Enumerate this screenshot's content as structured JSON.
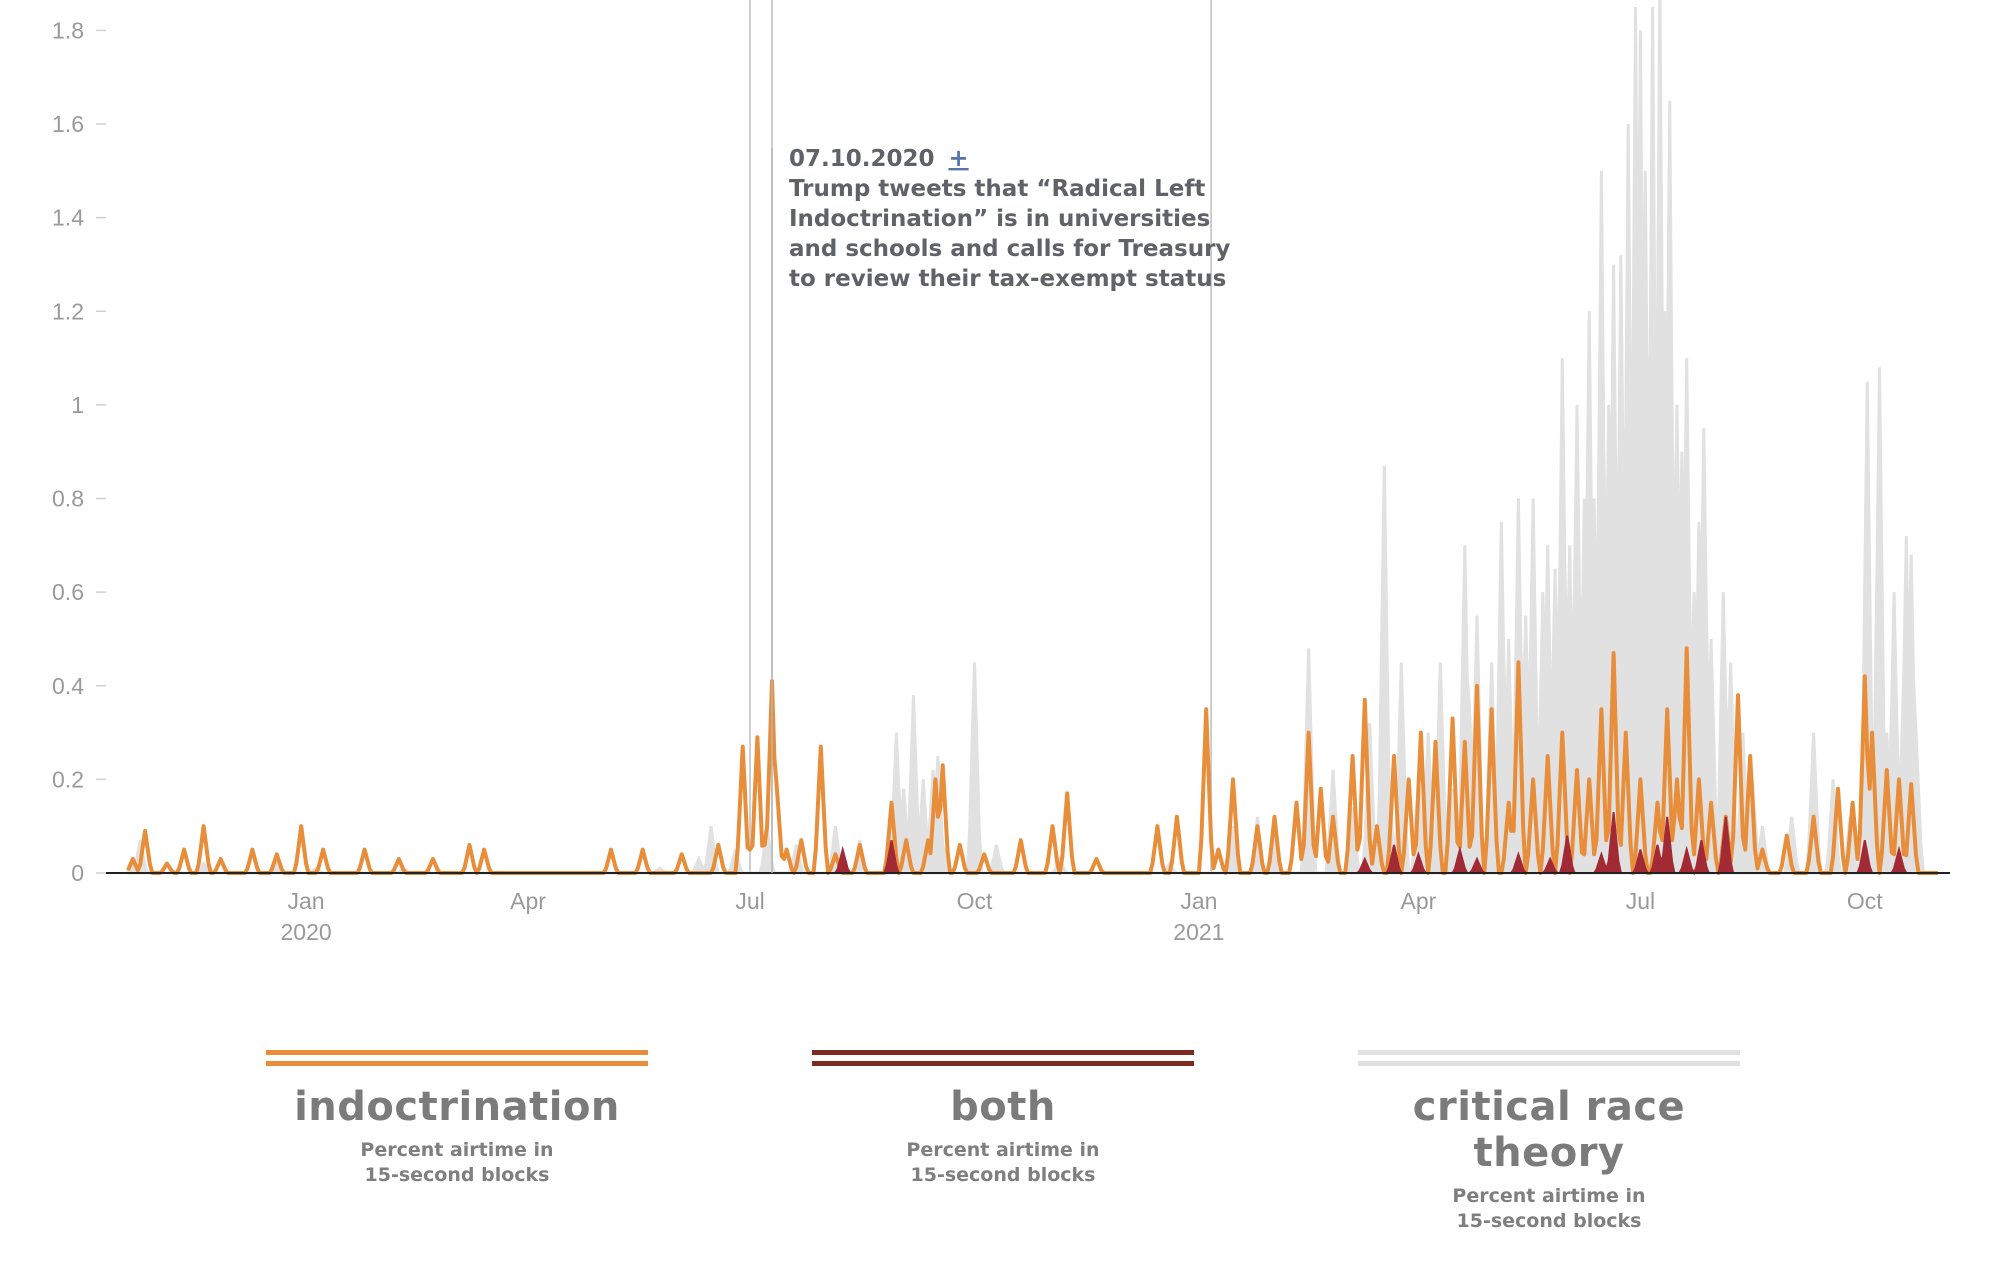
{
  "chart_data": {
    "type": "area",
    "title": "",
    "xlabel": "",
    "ylabel": "",
    "ylim": [
      0,
      1.85
    ],
    "xlim": [
      "2019-10-20",
      "2021-10-31"
    ],
    "y_ticks": [
      {
        "value": 0,
        "label": "0"
      },
      {
        "value": 0.2,
        "label": "0.2"
      },
      {
        "value": 0.4,
        "label": "0.4"
      },
      {
        "value": 0.6,
        "label": "0.6"
      },
      {
        "value": 0.8,
        "label": "0.8"
      },
      {
        "value": 1,
        "label": "1"
      },
      {
        "value": 1.2,
        "label": "1.2"
      },
      {
        "value": 1.4,
        "label": "1.4"
      },
      {
        "value": 1.6,
        "label": "1.6"
      },
      {
        "value": 1.8,
        "label": "1.8"
      }
    ],
    "x_ticks": [
      {
        "date": "2020-01-01",
        "label": "Jan",
        "year": "2020"
      },
      {
        "date": "2020-04-01",
        "label": "Apr",
        "year": ""
      },
      {
        "date": "2020-07-01",
        "label": "Jul",
        "year": ""
      },
      {
        "date": "2020-10-01",
        "label": "Oct",
        "year": ""
      },
      {
        "date": "2021-01-01",
        "label": "Jan",
        "year": "2021"
      },
      {
        "date": "2021-04-01",
        "label": "Apr",
        "year": ""
      },
      {
        "date": "2021-07-01",
        "label": "Jul",
        "year": ""
      },
      {
        "date": "2021-10-01",
        "label": "Oct",
        "year": ""
      }
    ],
    "annotation_lines": [
      "2020-07-01",
      "2020-07-10",
      "2021-01-06"
    ],
    "annotation": {
      "date": "2020-07-10",
      "heading": "07.10.2020",
      "toggle": "+",
      "lines": [
        "Trump tweets that “Radical Left",
        "Indoctrination” is in universities",
        "and schools and calls for Treasury",
        "to review their tax-exempt status"
      ]
    },
    "series": [
      {
        "name": "critical race theory",
        "color": "#e1e1e1",
        "points": [
          [
            "2019-10-22",
            0.02
          ],
          [
            "2019-10-25",
            0.07
          ],
          [
            "2019-11-20",
            0.02
          ],
          [
            "2019-12-20",
            0.02
          ],
          [
            "2020-01-05",
            0.01
          ],
          [
            "2020-02-10",
            0.01
          ],
          [
            "2020-05-25",
            0.01
          ],
          [
            "2020-06-10",
            0.03
          ],
          [
            "2020-06-15",
            0.1
          ],
          [
            "2020-06-25",
            0.05
          ],
          [
            "2020-07-08",
            0.1
          ],
          [
            "2020-07-20",
            0.06
          ],
          [
            "2020-08-05",
            0.1
          ],
          [
            "2020-08-15",
            0.07
          ],
          [
            "2020-08-30",
            0.3
          ],
          [
            "2020-09-02",
            0.18
          ],
          [
            "2020-09-06",
            0.38
          ],
          [
            "2020-09-10",
            0.2
          ],
          [
            "2020-09-14",
            0.22
          ],
          [
            "2020-09-16",
            0.25
          ],
          [
            "2020-09-18",
            0.06
          ],
          [
            "2020-10-01",
            0.45
          ],
          [
            "2020-10-10",
            0.06
          ],
          [
            "2020-11-05",
            0.03
          ],
          [
            "2020-12-20",
            0.02
          ],
          [
            "2021-01-15",
            0.1
          ],
          [
            "2021-01-25",
            0.12
          ],
          [
            "2021-02-01",
            0.08
          ],
          [
            "2021-02-15",
            0.48
          ],
          [
            "2021-02-25",
            0.22
          ],
          [
            "2021-03-05",
            0.14
          ],
          [
            "2021-03-12",
            0.32
          ],
          [
            "2021-03-18",
            0.87
          ],
          [
            "2021-03-20",
            0.18
          ],
          [
            "2021-03-25",
            0.45
          ],
          [
            "2021-04-01",
            0.2
          ],
          [
            "2021-04-05",
            0.3
          ],
          [
            "2021-04-10",
            0.45
          ],
          [
            "2021-04-15",
            0.18
          ],
          [
            "2021-04-20",
            0.7
          ],
          [
            "2021-04-22",
            0.35
          ],
          [
            "2021-04-25",
            0.55
          ],
          [
            "2021-05-01",
            0.45
          ],
          [
            "2021-05-05",
            0.75
          ],
          [
            "2021-05-08",
            0.5
          ],
          [
            "2021-05-12",
            0.8
          ],
          [
            "2021-05-15",
            0.55
          ],
          [
            "2021-05-18",
            0.8
          ],
          [
            "2021-05-22",
            0.6
          ],
          [
            "2021-05-24",
            0.7
          ],
          [
            "2021-05-27",
            0.65
          ],
          [
            "2021-05-30",
            1.1
          ],
          [
            "2021-06-02",
            0.7
          ],
          [
            "2021-06-05",
            1.0
          ],
          [
            "2021-06-08",
            0.8
          ],
          [
            "2021-06-10",
            1.2
          ],
          [
            "2021-06-12",
            0.8
          ],
          [
            "2021-06-15",
            1.5
          ],
          [
            "2021-06-18",
            1.0
          ],
          [
            "2021-06-20",
            1.3
          ],
          [
            "2021-06-23",
            1.32
          ],
          [
            "2021-06-26",
            1.6
          ],
          [
            "2021-06-29",
            1.85
          ],
          [
            "2021-07-01",
            1.8
          ],
          [
            "2021-07-03",
            1.5
          ],
          [
            "2021-07-06",
            1.85
          ],
          [
            "2021-07-09",
            1.9
          ],
          [
            "2021-07-11",
            1.2
          ],
          [
            "2021-07-13",
            1.65
          ],
          [
            "2021-07-16",
            1.0
          ],
          [
            "2021-07-18",
            0.9
          ],
          [
            "2021-07-20",
            1.1
          ],
          [
            "2021-07-23",
            0.6
          ],
          [
            "2021-07-25",
            0.75
          ],
          [
            "2021-07-27",
            0.95
          ],
          [
            "2021-07-30",
            0.5
          ],
          [
            "2021-08-04",
            0.6
          ],
          [
            "2021-08-07",
            0.45
          ],
          [
            "2021-08-12",
            0.3
          ],
          [
            "2021-08-16",
            0.2
          ],
          [
            "2021-08-20",
            0.1
          ],
          [
            "2021-09-01",
            0.12
          ],
          [
            "2021-09-10",
            0.3
          ],
          [
            "2021-09-18",
            0.2
          ],
          [
            "2021-09-25",
            0.12
          ],
          [
            "2021-10-01",
            0.18
          ],
          [
            "2021-10-02",
            1.05
          ],
          [
            "2021-10-05",
            0.3
          ],
          [
            "2021-10-07",
            1.08
          ],
          [
            "2021-10-10",
            0.3
          ],
          [
            "2021-10-13",
            0.6
          ],
          [
            "2021-10-16",
            0.25
          ],
          [
            "2021-10-18",
            0.72
          ],
          [
            "2021-10-20",
            0.68
          ],
          [
            "2021-10-22",
            0.3
          ]
        ]
      },
      {
        "name": "indoctrination",
        "color": "#e88e3a",
        "points": [
          [
            "2019-10-22",
            0.03
          ],
          [
            "2019-10-27",
            0.09
          ],
          [
            "2019-11-05",
            0.02
          ],
          [
            "2019-11-12",
            0.05
          ],
          [
            "2019-11-20",
            0.1
          ],
          [
            "2019-11-27",
            0.03
          ],
          [
            "2019-12-10",
            0.05
          ],
          [
            "2019-12-20",
            0.04
          ],
          [
            "2019-12-30",
            0.1
          ],
          [
            "2020-01-08",
            0.05
          ],
          [
            "2020-01-25",
            0.05
          ],
          [
            "2020-02-08",
            0.03
          ],
          [
            "2020-02-22",
            0.03
          ],
          [
            "2020-03-08",
            0.06
          ],
          [
            "2020-03-14",
            0.05
          ],
          [
            "2020-05-05",
            0.05
          ],
          [
            "2020-05-18",
            0.05
          ],
          [
            "2020-06-03",
            0.04
          ],
          [
            "2020-06-18",
            0.06
          ],
          [
            "2020-06-28",
            0.27
          ],
          [
            "2020-07-01",
            0.05
          ],
          [
            "2020-07-04",
            0.29
          ],
          [
            "2020-07-08",
            0.1
          ],
          [
            "2020-07-10",
            0.41
          ],
          [
            "2020-07-12",
            0.18
          ],
          [
            "2020-07-16",
            0.05
          ],
          [
            "2020-07-22",
            0.07
          ],
          [
            "2020-07-30",
            0.27
          ],
          [
            "2020-08-05",
            0.04
          ],
          [
            "2020-08-15",
            0.06
          ],
          [
            "2020-08-28",
            0.15
          ],
          [
            "2020-09-03",
            0.07
          ],
          [
            "2020-09-12",
            0.07
          ],
          [
            "2020-09-15",
            0.2
          ],
          [
            "2020-09-18",
            0.23
          ],
          [
            "2020-09-25",
            0.06
          ],
          [
            "2020-10-05",
            0.04
          ],
          [
            "2020-10-20",
            0.07
          ],
          [
            "2020-11-02",
            0.1
          ],
          [
            "2020-11-08",
            0.17
          ],
          [
            "2020-11-20",
            0.03
          ],
          [
            "2020-12-15",
            0.1
          ],
          [
            "2020-12-23",
            0.12
          ],
          [
            "2021-01-04",
            0.35
          ],
          [
            "2021-01-09",
            0.05
          ],
          [
            "2021-01-15",
            0.2
          ],
          [
            "2021-01-25",
            0.1
          ],
          [
            "2021-02-01",
            0.12
          ],
          [
            "2021-02-10",
            0.15
          ],
          [
            "2021-02-15",
            0.3
          ],
          [
            "2021-02-20",
            0.18
          ],
          [
            "2021-02-25",
            0.12
          ],
          [
            "2021-03-05",
            0.25
          ],
          [
            "2021-03-10",
            0.37
          ],
          [
            "2021-03-15",
            0.1
          ],
          [
            "2021-03-22",
            0.25
          ],
          [
            "2021-03-28",
            0.2
          ],
          [
            "2021-04-02",
            0.3
          ],
          [
            "2021-04-08",
            0.28
          ],
          [
            "2021-04-15",
            0.33
          ],
          [
            "2021-04-20",
            0.28
          ],
          [
            "2021-04-25",
            0.4
          ],
          [
            "2021-05-01",
            0.35
          ],
          [
            "2021-05-08",
            0.15
          ],
          [
            "2021-05-12",
            0.45
          ],
          [
            "2021-05-18",
            0.2
          ],
          [
            "2021-05-24",
            0.25
          ],
          [
            "2021-05-30",
            0.3
          ],
          [
            "2021-06-05",
            0.22
          ],
          [
            "2021-06-10",
            0.2
          ],
          [
            "2021-06-15",
            0.35
          ],
          [
            "2021-06-20",
            0.47
          ],
          [
            "2021-06-25",
            0.3
          ],
          [
            "2021-07-01",
            0.2
          ],
          [
            "2021-07-08",
            0.15
          ],
          [
            "2021-07-12",
            0.35
          ],
          [
            "2021-07-16",
            0.2
          ],
          [
            "2021-07-20",
            0.48
          ],
          [
            "2021-07-25",
            0.2
          ],
          [
            "2021-07-30",
            0.15
          ],
          [
            "2021-08-05",
            0.12
          ],
          [
            "2021-08-10",
            0.38
          ],
          [
            "2021-08-15",
            0.25
          ],
          [
            "2021-08-20",
            0.05
          ],
          [
            "2021-08-30",
            0.08
          ],
          [
            "2021-09-10",
            0.12
          ],
          [
            "2021-09-20",
            0.18
          ],
          [
            "2021-09-26",
            0.15
          ],
          [
            "2021-10-01",
            0.42
          ],
          [
            "2021-10-04",
            0.3
          ],
          [
            "2021-10-10",
            0.22
          ],
          [
            "2021-10-15",
            0.2
          ],
          [
            "2021-10-20",
            0.19
          ]
        ]
      },
      {
        "name": "both",
        "color": "#a12a35",
        "points": [
          [
            "2020-08-08",
            0.05
          ],
          [
            "2020-08-28",
            0.07
          ],
          [
            "2021-03-10",
            0.03
          ],
          [
            "2021-03-22",
            0.06
          ],
          [
            "2021-04-01",
            0.04
          ],
          [
            "2021-04-18",
            0.05
          ],
          [
            "2021-04-25",
            0.03
          ],
          [
            "2021-05-12",
            0.04
          ],
          [
            "2021-05-25",
            0.03
          ],
          [
            "2021-06-01",
            0.08
          ],
          [
            "2021-06-15",
            0.04
          ],
          [
            "2021-06-20",
            0.13
          ],
          [
            "2021-07-01",
            0.05
          ],
          [
            "2021-07-08",
            0.06
          ],
          [
            "2021-07-12",
            0.12
          ],
          [
            "2021-07-20",
            0.05
          ],
          [
            "2021-07-26",
            0.07
          ],
          [
            "2021-08-05",
            0.12
          ],
          [
            "2021-10-01",
            0.07
          ],
          [
            "2021-10-15",
            0.05
          ]
        ]
      }
    ]
  },
  "legend": {
    "items": [
      {
        "title": "indoctrination",
        "color": "#e88e3a",
        "sub1": "Percent airtime in",
        "sub2": "15-second blocks"
      },
      {
        "title": "both",
        "color": "#7d2a21",
        "sub1": "Percent airtime in",
        "sub2": "15-second blocks"
      },
      {
        "title": "critical race theory",
        "color": "#e1e1e1",
        "sub1": "Percent airtime in",
        "sub2": "15-second blocks"
      }
    ]
  }
}
